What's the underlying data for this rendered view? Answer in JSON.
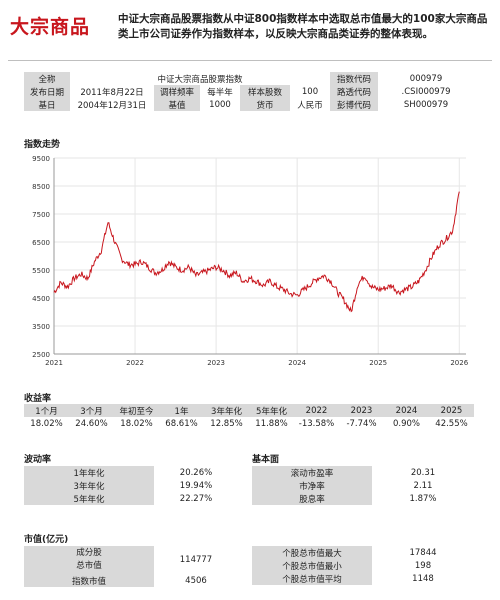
{
  "header": {
    "brand": "大宗商品",
    "description": "中证大宗商品股票指数从中证800指数样本中选取总市值最大的100家大宗商品类上市公司证券作为指数样本，以反映大宗商品类证券的整体表现。"
  },
  "info": {
    "row1": [
      "全称",
      "中证大宗商品股票指数",
      "指数代码",
      "000979"
    ],
    "row2": [
      "发布日期",
      "2011年8月22日",
      "调样频率",
      "每半年",
      "样本股数",
      "100",
      "路透代码",
      ".CSI000979"
    ],
    "row3": [
      "基日",
      "2004年12月31日",
      "基值",
      "1000",
      "货币",
      "人民币",
      "彭博代码",
      "SH000979"
    ]
  },
  "chart_title": "指数走势",
  "chart_data": {
    "type": "line",
    "title": "",
    "xlabel": "",
    "ylabel": "",
    "x_ticks": [
      "2021",
      "2022",
      "2023",
      "2024",
      "2025",
      "2026"
    ],
    "y_ticks": [
      "9500",
      "8500",
      "7500",
      "6500",
      "5500",
      "4500",
      "3500",
      "2500"
    ],
    "ylim": [
      2500,
      9500
    ],
    "series": [
      {
        "color": "#c8161d",
        "points": [
          [
            "2021-01",
            4700
          ],
          [
            "2021-02",
            5050
          ],
          [
            "2021-03",
            4900
          ],
          [
            "2021-04",
            5200
          ],
          [
            "2021-05",
            5350
          ],
          [
            "2021-06",
            5200
          ],
          [
            "2021-07",
            5800
          ],
          [
            "2021-08",
            6200
          ],
          [
            "2021-09",
            7200
          ],
          [
            "2021-10",
            6500
          ],
          [
            "2021-11",
            5900
          ],
          [
            "2021-12",
            5700
          ],
          [
            "2022-01",
            5700
          ],
          [
            "2022-02",
            5800
          ],
          [
            "2022-03",
            5600
          ],
          [
            "2022-04",
            5400
          ],
          [
            "2022-05",
            5500
          ],
          [
            "2022-06",
            5800
          ],
          [
            "2022-07",
            5600
          ],
          [
            "2022-08",
            5500
          ],
          [
            "2022-09",
            5600
          ],
          [
            "2022-10",
            5300
          ],
          [
            "2022-11",
            5400
          ],
          [
            "2022-12",
            5500
          ],
          [
            "2023-01",
            5600
          ],
          [
            "2023-02",
            5500
          ],
          [
            "2023-03",
            5300
          ],
          [
            "2023-04",
            5400
          ],
          [
            "2023-05",
            5100
          ],
          [
            "2023-06",
            5200
          ],
          [
            "2023-07",
            5100
          ],
          [
            "2023-08",
            4950
          ],
          [
            "2023-09",
            5100
          ],
          [
            "2023-10",
            4900
          ],
          [
            "2023-11",
            4800
          ],
          [
            "2023-12",
            4650
          ],
          [
            "2024-01",
            4600
          ],
          [
            "2024-02",
            4800
          ],
          [
            "2024-03",
            5000
          ],
          [
            "2024-04",
            5200
          ],
          [
            "2024-05",
            5300
          ],
          [
            "2024-06",
            5100
          ],
          [
            "2024-07",
            4700
          ],
          [
            "2024-08",
            4400
          ],
          [
            "2024-09",
            4000
          ],
          [
            "2024-10",
            5000
          ],
          [
            "2024-11",
            5300
          ],
          [
            "2024-12",
            4900
          ],
          [
            "2025-01",
            4800
          ],
          [
            "2025-02",
            4850
          ],
          [
            "2025-03",
            4950
          ],
          [
            "2025-04",
            4700
          ],
          [
            "2025-05",
            4800
          ],
          [
            "2025-06",
            4900
          ],
          [
            "2025-07",
            5100
          ],
          [
            "2025-08",
            5500
          ],
          [
            "2025-09",
            6000
          ],
          [
            "2025-10",
            6400
          ],
          [
            "2025-11",
            6600
          ],
          [
            "2025-12",
            6900
          ],
          [
            "2026-01",
            8300
          ]
        ]
      }
    ]
  },
  "returns": {
    "title": "收益率",
    "headers": [
      "1个月",
      "3个月",
      "年初至今",
      "1年",
      "3年年化",
      "5年年化",
      "2022",
      "2023",
      "2024",
      "2025"
    ],
    "values": [
      "18.02%",
      "24.60%",
      "18.02%",
      "68.61%",
      "12.85%",
      "11.88%",
      "-13.58%",
      "-7.74%",
      "0.90%",
      "42.55%"
    ]
  },
  "volatility": {
    "title": "波动率",
    "rows": [
      [
        "1年年化",
        "20.26%"
      ],
      [
        "3年年化",
        "19.94%"
      ],
      [
        "5年年化",
        "22.27%"
      ]
    ]
  },
  "fundamentals": {
    "title": "基本面",
    "rows": [
      [
        "滚动市盈率",
        "20.31"
      ],
      [
        "市净率",
        "2.11"
      ],
      [
        "股息率",
        "1.87%"
      ]
    ]
  },
  "mktcap": {
    "title": "市值(亿元)",
    "left": [
      [
        "成分股\n总市值",
        "114777"
      ],
      [
        "指数市值",
        "4506"
      ]
    ],
    "right": [
      [
        "个股总市值最大",
        "17844"
      ],
      [
        "个股总市值最小",
        "198"
      ],
      [
        "个股总市值平均",
        "1148"
      ]
    ]
  }
}
